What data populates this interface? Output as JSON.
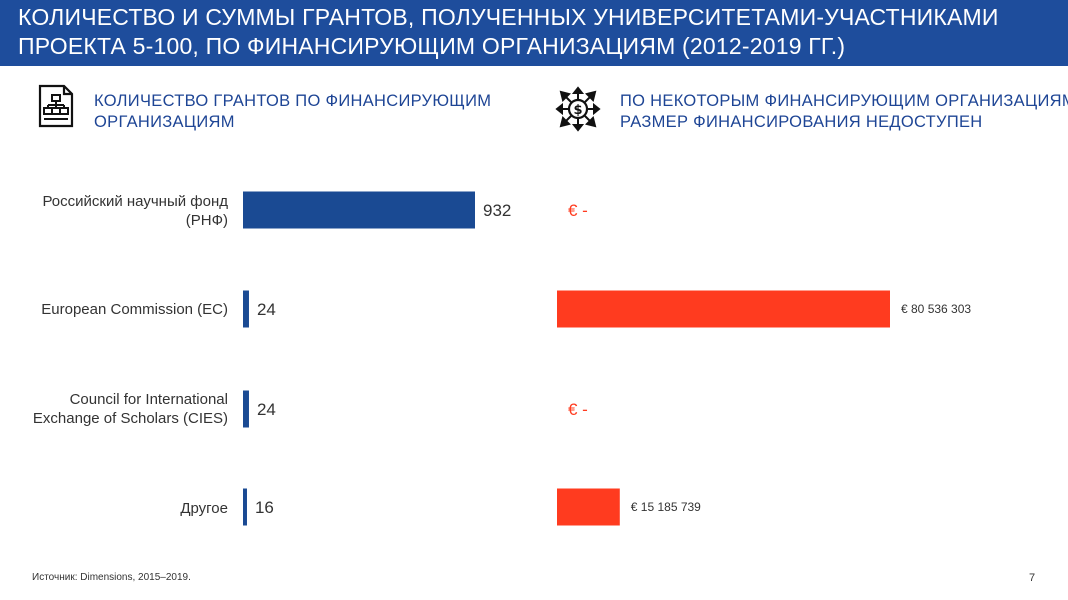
{
  "header": {
    "title_line1": "КОЛИЧЕСТВО И СУММЫ ГРАНТОВ, ПОЛУЧЕННЫХ УНИВЕРСИТЕТАМИ-УЧАСТНИКАМИ",
    "title_line2": "ПРОЕКТА 5-100, ПО ФИНАНСИРУЮЩИМ ОРГАНИЗАЦИЯМ (2012-2019 ГГ.)",
    "background_color": "#1e4d9c"
  },
  "left_section": {
    "icon": "org-chart-document-icon",
    "title_line1": "КОЛИЧЕСТВО ГРАНТОВ ПО ФИНАНСИРУЮЩИМ",
    "title_line2": "ОРГАНИЗАЦИЯМ"
  },
  "right_section": {
    "icon": "money-distribution-icon",
    "title_line1": "ПО НЕКОТОРЫМ ФИНАНСИРУЮЩИМ ОРГАНИЗАЦИЯМ",
    "title_line2": "РАЗМЕР ФИНАНСИРОВАНИЯ НЕДОСТУПЕН"
  },
  "categories": [
    {
      "line1": "Российский научный фонд",
      "line2": "(РНФ)"
    },
    {
      "line1": "European Commission (EC)",
      "line2": ""
    },
    {
      "line1": "Council for International",
      "line2": "Exchange of Scholars (CIES)"
    },
    {
      "line1": "Другое",
      "line2": ""
    }
  ],
  "chart_data": [
    {
      "type": "bar",
      "orientation": "horizontal",
      "title": "КОЛИЧЕСТВО ГРАНТОВ ПО ФИНАНСИРУЮЩИМ ОРГАНИЗАЦИЯМ",
      "categories": [
        "Российский научный фонд (РНФ)",
        "European Commission (EC)",
        "Council for International Exchange of Scholars (CIES)",
        "Другое"
      ],
      "values": [
        932,
        24,
        24,
        16
      ],
      "value_labels": [
        "932",
        "24",
        "24",
        "16"
      ],
      "color": "#1a4a93"
    },
    {
      "type": "bar",
      "orientation": "horizontal",
      "title": "ПО НЕКОТОРЫМ ФИНАНСИРУЮЩИМ ОРГАНИЗАЦИЯМ РАЗМЕР ФИНАНСИРОВАНИЯ НЕДОСТУПЕН",
      "categories": [
        "Российский научный фонд (РНФ)",
        "European Commission (EC)",
        "Council for International Exchange of Scholars (CIES)",
        "Другое"
      ],
      "values": [
        0,
        80536303,
        0,
        15185739
      ],
      "value_labels": [
        "€ -",
        "€ 80 536 303",
        "€ -",
        "€ 15 185 739"
      ],
      "unit": "€",
      "color": "#ff3b1f"
    }
  ],
  "footer": {
    "source": "Источник: Dimensions, 2015–2019.",
    "page_number": "7"
  }
}
